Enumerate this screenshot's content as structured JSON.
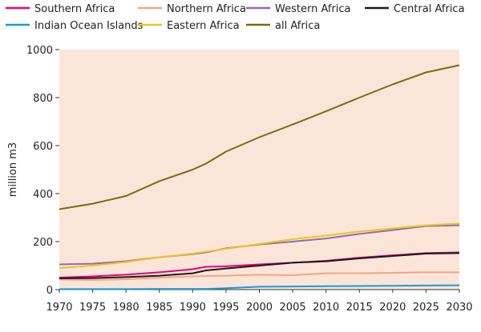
{
  "chart_data": {
    "type": "line",
    "title": "",
    "xlabel": "",
    "ylabel": "million m3",
    "xlim": [
      1970,
      2030
    ],
    "ylim": [
      0,
      1000
    ],
    "x_ticks": [
      "1970",
      "1975",
      "1980",
      "1985",
      "1990",
      "1995",
      "2000",
      "2005",
      "2010",
      "2015",
      "2020",
      "2025",
      "2030"
    ],
    "y_ticks": [
      "0",
      "200",
      "400",
      "600",
      "800",
      "1000"
    ],
    "grid": false,
    "legend_position": "top",
    "background": "#fbe5d9",
    "x": [
      1970,
      1975,
      1980,
      1985,
      1990,
      1992,
      1995,
      2000,
      2005,
      2010,
      2015,
      2020,
      2025,
      2030
    ],
    "series": [
      {
        "name": "Southern Africa",
        "color": "#e5007d",
        "values": [
          50,
          55,
          62,
          72,
          85,
          95,
          97,
          105,
          112,
          120,
          133,
          143,
          152,
          155
        ]
      },
      {
        "name": "Northern Africa",
        "color": "#f4a582",
        "values": [
          42,
          40,
          43,
          50,
          55,
          57,
          58,
          62,
          60,
          68,
          68,
          70,
          72,
          72
        ]
      },
      {
        "name": "Western Africa",
        "color": "#8e6bb0",
        "values": [
          105,
          108,
          118,
          135,
          148,
          155,
          172,
          188,
          200,
          213,
          232,
          248,
          265,
          268
        ]
      },
      {
        "name": "Central Africa",
        "color": "#1a1a1a",
        "values": [
          47,
          48,
          52,
          58,
          68,
          80,
          88,
          100,
          112,
          118,
          130,
          140,
          150,
          152
        ]
      },
      {
        "name": "Indian Ocean Islands",
        "color": "#1a9ad6",
        "values": [
          2,
          2,
          2,
          3,
          3,
          3,
          6,
          12,
          13,
          14,
          15,
          16,
          17,
          18
        ]
      },
      {
        "name": "Eastern Africa",
        "color": "#f0c419",
        "values": [
          90,
          100,
          115,
          135,
          150,
          158,
          170,
          190,
          210,
          225,
          242,
          255,
          268,
          275
        ]
      },
      {
        "name": "all Africa",
        "color": "#7d6a10",
        "values": [
          335,
          358,
          390,
          452,
          500,
          525,
          575,
          635,
          688,
          743,
          800,
          855,
          905,
          935
        ]
      }
    ]
  }
}
